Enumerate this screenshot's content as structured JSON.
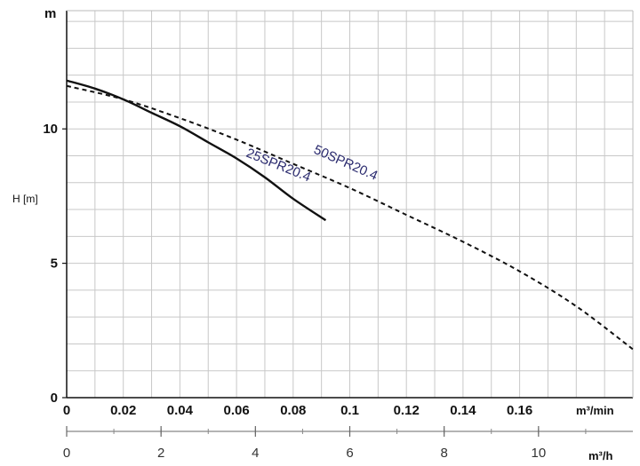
{
  "chart_data": {
    "type": "line",
    "title": "",
    "ylabel": "H [m]",
    "y_unit": "m",
    "x_unit": "m³/min",
    "x2_unit": "m³/h",
    "xlim": [
      0,
      0.2
    ],
    "ylim": [
      0,
      14.4
    ],
    "x_ticks": [
      "0",
      "0.02",
      "0.04",
      "0.06",
      "0.08",
      "0.1",
      "0.12",
      "0.14",
      "0.16"
    ],
    "x_tick_values": [
      0,
      0.02,
      0.04,
      0.06,
      0.08,
      0.1,
      0.12,
      0.14,
      0.16
    ],
    "x2_ticks": [
      "0",
      "2",
      "4",
      "6",
      "8",
      "10"
    ],
    "x2_tick_values": [
      0,
      2,
      4,
      6,
      8,
      10
    ],
    "y_ticks": [
      "0",
      "5",
      "10"
    ],
    "y_tick_values": [
      0,
      5,
      10
    ],
    "grid": true,
    "series": [
      {
        "name": "25SPR20.4",
        "style": "solid",
        "color": "#111111",
        "x": [
          0,
          0.01,
          0.02,
          0.03,
          0.04,
          0.05,
          0.06,
          0.07,
          0.08,
          0.0915
        ],
        "y": [
          11.8,
          11.5,
          11.1,
          10.6,
          10.1,
          9.5,
          8.9,
          8.2,
          7.4,
          6.6
        ]
      },
      {
        "name": "50SPR20.4",
        "style": "dashed",
        "color": "#111111",
        "x": [
          0,
          0.02,
          0.04,
          0.06,
          0.08,
          0.1,
          0.12,
          0.14,
          0.16,
          0.18,
          0.2
        ],
        "y": [
          11.6,
          11.1,
          10.4,
          9.6,
          8.7,
          7.8,
          6.8,
          5.8,
          4.7,
          3.4,
          1.8
        ]
      }
    ]
  }
}
